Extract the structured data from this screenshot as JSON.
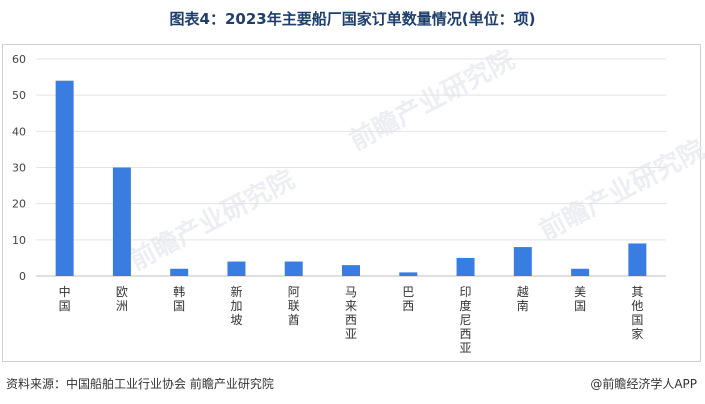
{
  "title": "图表4：2023年主要船厂国家订单数量情况(单位：项)",
  "watermark": "前瞻产业研究院",
  "footer": {
    "source": "资料来源：中国船舶工业行业协会 前瞻产业研究院",
    "brand": "@前瞻经济学人APP"
  },
  "chart_data": {
    "type": "bar",
    "categories": [
      "中国",
      "欧洲",
      "韩国",
      "新加坡",
      "阿联酋",
      "马来西亚",
      "巴西",
      "印度尼西亚",
      "越南",
      "美国",
      "其他国家"
    ],
    "values": [
      54,
      30,
      2,
      4,
      4,
      3,
      1,
      5,
      8,
      2,
      9
    ],
    "ylim": [
      0,
      60
    ],
    "yticks": [
      0,
      10,
      20,
      30,
      40,
      50,
      60
    ],
    "grid": true,
    "bar_color": "#3a7de0"
  }
}
